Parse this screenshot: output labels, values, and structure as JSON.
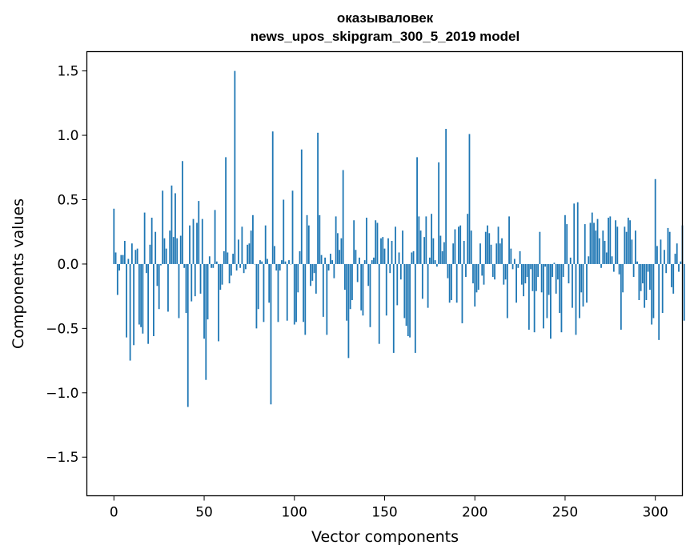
{
  "chart_data": {
    "type": "bar",
    "title_line1": "оказываловек",
    "title_line2": "news_upos_skipgram_300_5_2019 model",
    "xlabel": "Vector components",
    "ylabel": "Components values",
    "xlim": [
      -15,
      315
    ],
    "ylim": [
      -1.8,
      1.65
    ],
    "xticks": [
      0,
      50,
      100,
      150,
      200,
      250,
      300
    ],
    "xtick_labels": [
      "0",
      "50",
      "100",
      "150",
      "200",
      "250",
      "300"
    ],
    "yticks": [
      -1.5,
      -1.0,
      -0.5,
      0.0,
      0.5,
      1.0,
      1.5
    ],
    "ytick_labels": [
      "−1.5",
      "−1.0",
      "−0.5",
      "0.0",
      "0.5",
      "1.0",
      "1.5"
    ],
    "bar_color": "#1f77b4",
    "values": [
      0.43,
      0.09,
      -0.24,
      -0.05,
      0.07,
      0.07,
      0.18,
      -0.57,
      0.04,
      -0.75,
      0.16,
      -0.63,
      0.11,
      0.12,
      -0.47,
      -0.49,
      -0.54,
      0.4,
      -0.07,
      -0.62,
      0.15,
      0.36,
      -0.56,
      0.25,
      -0.17,
      -0.35,
      -0.01,
      0.57,
      0.2,
      0.12,
      -0.37,
      0.26,
      0.61,
      0.21,
      0.55,
      0.2,
      -0.42,
      0.22,
      0.8,
      -0.03,
      -0.38,
      -1.11,
      0.3,
      -0.29,
      0.35,
      -0.25,
      0.32,
      0.49,
      -0.23,
      0.35,
      -0.58,
      -0.9,
      -0.43,
      0.06,
      -0.03,
      -0.03,
      0.42,
      0.02,
      -0.6,
      -0.2,
      -0.16,
      0.1,
      0.83,
      0.09,
      -0.15,
      -0.09,
      0.08,
      1.5,
      -0.05,
      0.19,
      -0.03,
      0.29,
      -0.07,
      -0.04,
      0.15,
      0.16,
      0.26,
      0.38,
      0.0,
      -0.5,
      -0.35,
      0.03,
      0.02,
      -0.45,
      0.3,
      0.04,
      -0.3,
      -1.09,
      1.03,
      0.14,
      -0.05,
      -0.45,
      -0.05,
      0.03,
      0.5,
      0.02,
      -0.44,
      0.03,
      0.0,
      0.57,
      -0.47,
      -0.45,
      -0.22,
      0.1,
      0.89,
      -0.45,
      -0.55,
      0.38,
      0.3,
      -0.17,
      -0.13,
      -0.07,
      -0.23,
      1.02,
      0.38,
      0.07,
      -0.41,
      0.05,
      -0.55,
      -0.05,
      0.08,
      0.03,
      -0.11,
      0.37,
      0.24,
      0.11,
      0.2,
      0.73,
      -0.2,
      -0.44,
      -0.73,
      -0.35,
      -0.28,
      0.34,
      0.11,
      -0.14,
      0.05,
      -0.36,
      -0.4,
      0.03,
      0.36,
      -0.17,
      -0.49,
      0.03,
      0.05,
      0.34,
      0.32,
      -0.62,
      0.2,
      0.21,
      0.12,
      -0.4,
      0.2,
      -0.07,
      0.18,
      -0.69,
      0.29,
      -0.32,
      0.09,
      -0.12,
      0.26,
      -0.42,
      -0.48,
      -0.56,
      -0.57,
      0.09,
      0.1,
      -0.69,
      0.83,
      0.37,
      0.26,
      -0.27,
      0.21,
      0.37,
      -0.34,
      0.05,
      0.39,
      0.2,
      0.03,
      -0.02,
      0.79,
      0.22,
      0.1,
      0.17,
      1.05,
      -0.11,
      -0.3,
      -0.28,
      0.16,
      0.27,
      -0.3,
      0.29,
      0.3,
      -0.46,
      0.18,
      -0.1,
      0.39,
      1.01,
      0.26,
      -0.15,
      -0.33,
      -0.22,
      -0.2,
      0.16,
      -0.09,
      -0.16,
      0.25,
      0.3,
      0.24,
      0.15,
      -0.1,
      -0.12,
      0.16,
      0.29,
      0.16,
      0.2,
      -0.16,
      -0.12,
      -0.42,
      0.37,
      0.12,
      -0.04,
      0.04,
      -0.3,
      -0.03,
      0.1,
      -0.16,
      -0.25,
      -0.15,
      -0.1,
      -0.51,
      -0.04,
      -0.21,
      -0.53,
      -0.21,
      -0.1,
      0.25,
      -0.22,
      -0.5,
      -0.02,
      -0.42,
      -0.24,
      -0.58,
      -0.1,
      0.01,
      -0.23,
      -0.12,
      -0.38,
      -0.53,
      -0.1,
      0.38,
      0.31,
      -0.15,
      0.05,
      -0.34,
      0.47,
      -0.55,
      0.48,
      -0.42,
      -0.22,
      -0.33,
      0.31,
      -0.3,
      0.06,
      0.32,
      0.4,
      0.32,
      0.26,
      0.35,
      0.2,
      -0.03,
      0.26,
      0.18,
      0.09,
      0.36,
      0.37,
      0.06,
      -0.06,
      0.34,
      0.29,
      -0.08,
      -0.51,
      -0.22,
      0.29,
      0.25,
      0.36,
      0.34,
      0.19,
      -0.1,
      0.26,
      0.02,
      -0.28,
      -0.21,
      -0.15,
      -0.34,
      -0.28,
      -0.06,
      -0.2,
      -0.47,
      -0.42,
      0.66,
      0.14,
      -0.59,
      0.19,
      -0.38,
      0.11,
      -0.07,
      0.28,
      0.25,
      -0.18,
      -0.23,
      0.08,
      0.16,
      -0.06,
      0.02,
      0.3,
      -0.44
    ]
  }
}
